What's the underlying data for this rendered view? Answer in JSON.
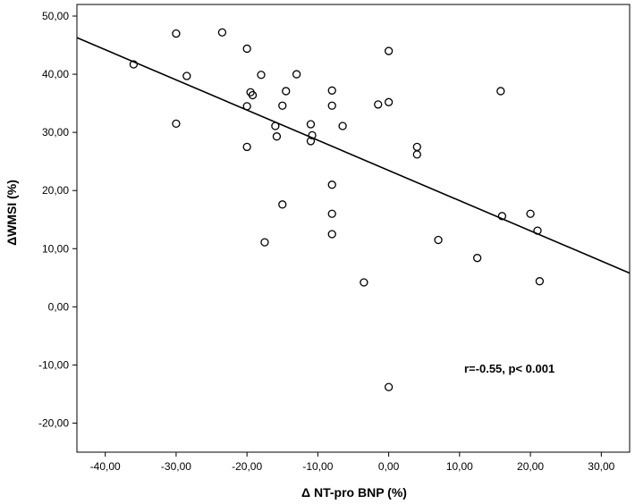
{
  "chart_data": {
    "type": "scatter",
    "title": "",
    "xlabel": "Δ NT-pro BNP (%)",
    "ylabel": "ΔWMSI (%)",
    "xlim": [
      -44,
      34
    ],
    "ylim": [
      -25,
      52
    ],
    "x_ticks": [
      -40,
      -30,
      -20,
      -10,
      0,
      10,
      20,
      30
    ],
    "x_tick_labels": [
      "-40,00",
      "-30,00",
      "-20,00",
      "-10,00",
      "0,00",
      "10,00",
      "20,00",
      "30,00"
    ],
    "y_ticks": [
      -20,
      -10,
      0,
      10,
      20,
      30,
      40,
      50
    ],
    "y_tick_labels": [
      "-20,00",
      "-10,00",
      "0,00",
      "10,00",
      "20,00",
      "30,00",
      "40,00",
      "50,00"
    ],
    "grid": false,
    "points": [
      {
        "x": -36,
        "y": 41.7
      },
      {
        "x": -30,
        "y": 47.0
      },
      {
        "x": -28.5,
        "y": 39.7
      },
      {
        "x": -30,
        "y": 31.5
      },
      {
        "x": -23.5,
        "y": 47.2
      },
      {
        "x": -20,
        "y": 44.4
      },
      {
        "x": -18,
        "y": 39.9
      },
      {
        "x": -19.5,
        "y": 36.9
      },
      {
        "x": -19.2,
        "y": 36.4
      },
      {
        "x": -20,
        "y": 34.5
      },
      {
        "x": -20,
        "y": 27.5
      },
      {
        "x": -14.5,
        "y": 37.1
      },
      {
        "x": -13,
        "y": 40.0
      },
      {
        "x": -15,
        "y": 34.6
      },
      {
        "x": -16,
        "y": 31.1
      },
      {
        "x": -15.8,
        "y": 29.3
      },
      {
        "x": -11,
        "y": 31.4
      },
      {
        "x": -10.8,
        "y": 29.5
      },
      {
        "x": -11,
        "y": 28.5
      },
      {
        "x": -15,
        "y": 17.6
      },
      {
        "x": -17.5,
        "y": 11.1
      },
      {
        "x": -8,
        "y": 37.2
      },
      {
        "x": -8,
        "y": 34.6
      },
      {
        "x": -6.5,
        "y": 31.1
      },
      {
        "x": -8,
        "y": 21.0
      },
      {
        "x": -8,
        "y": 16.0
      },
      {
        "x": -8,
        "y": 12.5
      },
      {
        "x": -1.5,
        "y": 34.8
      },
      {
        "x": 0,
        "y": 35.2
      },
      {
        "x": 0,
        "y": 44.0
      },
      {
        "x": 4,
        "y": 27.5
      },
      {
        "x": 4,
        "y": 26.2
      },
      {
        "x": -3.5,
        "y": 4.2
      },
      {
        "x": 0,
        "y": -13.8
      },
      {
        "x": 7,
        "y": 11.5
      },
      {
        "x": 12.5,
        "y": 8.4
      },
      {
        "x": 15.8,
        "y": 37.1
      },
      {
        "x": 16,
        "y": 15.6
      },
      {
        "x": 20,
        "y": 16.0
      },
      {
        "x": 21,
        "y": 13.1
      },
      {
        "x": 21.3,
        "y": 4.4
      }
    ],
    "regression_line": {
      "x": [
        -44,
        34
      ],
      "y": [
        46.3,
        5.8
      ]
    },
    "annotation": "r=-0.55, p< 0.001"
  }
}
